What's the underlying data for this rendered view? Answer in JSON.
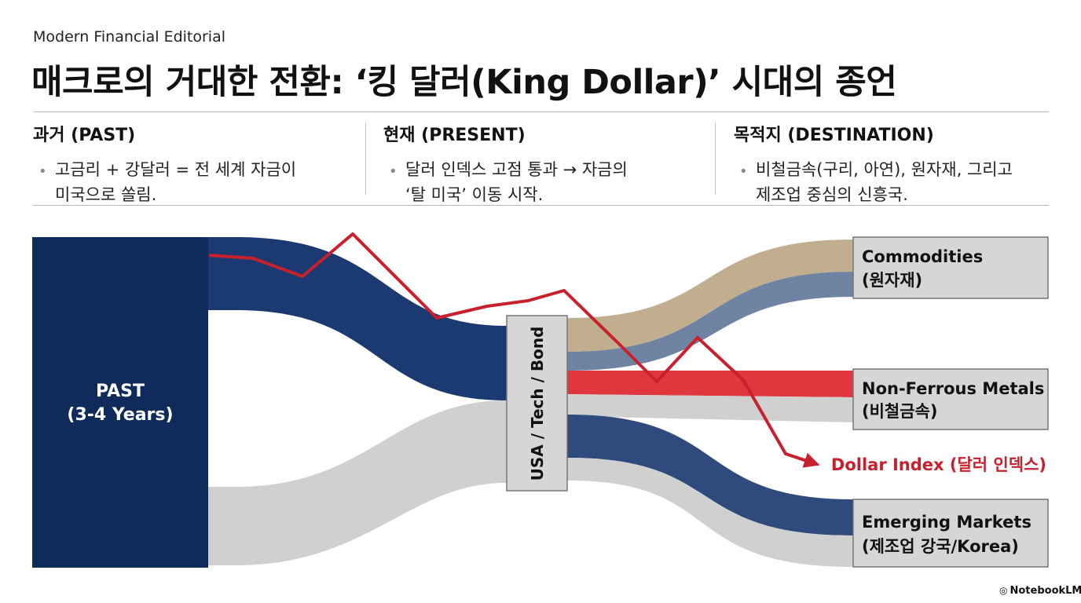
{
  "header": {
    "kicker": "Modern Financial Editorial",
    "title": "매크로의 거대한 전환: ‘킹 달러(King Dollar)’ 시대의 종언"
  },
  "columns": [
    {
      "heading": "과거 (PAST)",
      "line1": "고금리 + 강달러 = 전 세계 자금이",
      "line2": "미국으로 쏠림."
    },
    {
      "heading": "현재 (PRESENT)",
      "line1": "달러 인덱스 고점 통과 → 자금의",
      "line2": "‘탈 미국’ 이동 시작."
    },
    {
      "heading": "목적지 (DESTINATION)",
      "line1": "비철금속(구리, 아연), 원자재, 그리고",
      "line2": "제조업 중심의 신흥국."
    }
  ],
  "diagram": {
    "source": {
      "line1": "PAST",
      "line2": "(3-4 Years)"
    },
    "hub": {
      "label": "USA / Tech / Bond"
    },
    "targets": [
      {
        "line1": "Commodities",
        "line2": "(원자재)"
      },
      {
        "line1": "Non-Ferrous Metals",
        "line2": "(비철금속)"
      },
      {
        "line1": "Emerging Markets",
        "line2": "(제조업 강국/Korea)"
      }
    ],
    "index_label": "Dollar Index (달러 인덱스)",
    "colors": {
      "navy": "#0f2b5b",
      "navy_flow": "#1c3a72",
      "gray_flow": "#d0d0d0",
      "tan_flow": "#c0ae8f",
      "slate_flow": "#6f83a3",
      "red_flow": "#e0373f",
      "red_line": "#c8202c",
      "box_fill": "#d6d6d6",
      "box_stroke": "#777777"
    }
  },
  "brand": {
    "icon": "notebook-logo-icon",
    "name": "NotebookLM"
  }
}
